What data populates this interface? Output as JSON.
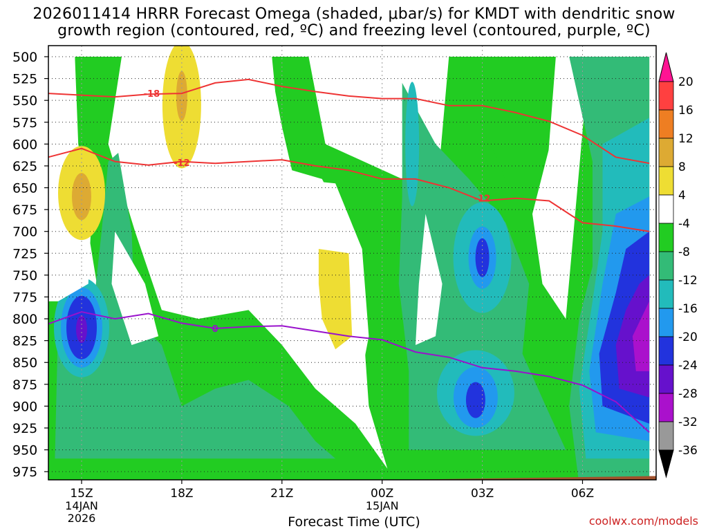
{
  "title_line1": "2026011414 HRRR Forecast Omega (shaded, μbar/s) for KMDT with dendritic snow",
  "title_line2": "growth region (contoured, red, ºC) and freezing level (contoured, purple, ºC)",
  "credit": "coolwx.com/models",
  "chart_data": {
    "type": "heatmap",
    "xlabel": "Forecast Time (UTC)",
    "ylabel": "",
    "x_ticks": [
      {
        "label": "15Z",
        "sub": [
          "14JAN",
          "2026"
        ],
        "hour": 15
      },
      {
        "label": "18Z",
        "sub": [],
        "hour": 18
      },
      {
        "label": "21Z",
        "sub": [],
        "hour": 21
      },
      {
        "label": "00Z",
        "sub": [
          "15JAN"
        ],
        "hour": 24
      },
      {
        "label": "03Z",
        "sub": [],
        "hour": 27
      },
      {
        "label": "06Z",
        "sub": [],
        "hour": 30
      }
    ],
    "x_range_hours": [
      14,
      32
    ],
    "y_ticks": [
      "500",
      "525",
      "550",
      "575",
      "600",
      "625",
      "650",
      "675",
      "700",
      "725",
      "750",
      "775",
      "800",
      "825",
      "850",
      "875",
      "900",
      "925",
      "950",
      "975"
    ],
    "y_range_mb": [
      500,
      990
    ],
    "grid": true,
    "colorbar": {
      "labels": [
        "20",
        "16",
        "12",
        "8",
        "4",
        "-4",
        "-8",
        "-12",
        "-16",
        "-20",
        "-24",
        "-28",
        "-32",
        "-36"
      ],
      "colors": [
        "#ff1493",
        "#ff4040",
        "#ee7e22",
        "#ddaa33",
        "#eedd33",
        "#ffffff",
        "#22cc22",
        "#33bb77",
        "#22bbbb",
        "#2299ee",
        "#2233dd",
        "#6611cc",
        "#aa11cc",
        "#999999",
        "#000000"
      ]
    },
    "red_isotherms": [
      {
        "label": "-18",
        "points": [
          [
            14,
            542
          ],
          [
            15,
            544
          ],
          [
            16,
            546
          ],
          [
            17,
            543
          ],
          [
            18,
            542
          ],
          [
            19,
            530
          ],
          [
            20,
            526
          ],
          [
            21,
            534
          ],
          [
            22,
            540
          ],
          [
            23,
            545
          ],
          [
            24,
            548
          ],
          [
            25,
            548
          ],
          [
            26,
            556
          ],
          [
            27,
            556
          ],
          [
            28,
            564
          ],
          [
            29,
            574
          ],
          [
            30,
            590
          ],
          [
            31,
            615
          ],
          [
            32,
            622
          ]
        ]
      },
      {
        "label": "-12",
        "points": [
          [
            14,
            615
          ],
          [
            15,
            605
          ],
          [
            16,
            620
          ],
          [
            17,
            624
          ],
          [
            18,
            620
          ],
          [
            19,
            622
          ],
          [
            20,
            620
          ],
          [
            21,
            618
          ],
          [
            22,
            625
          ],
          [
            23,
            630
          ],
          [
            24,
            640
          ],
          [
            25,
            640
          ],
          [
            26,
            650
          ],
          [
            27,
            665
          ],
          [
            28,
            662
          ],
          [
            29,
            665
          ],
          [
            30,
            690
          ],
          [
            31,
            694
          ],
          [
            32,
            700
          ]
        ]
      }
    ],
    "purple_isotherms": [
      {
        "label": "0",
        "points": [
          [
            14,
            806
          ],
          [
            15,
            792
          ],
          [
            16,
            800
          ],
          [
            17,
            794
          ],
          [
            18,
            805
          ],
          [
            19,
            811
          ],
          [
            20,
            809
          ],
          [
            21,
            808
          ],
          [
            22,
            814
          ],
          [
            23,
            820
          ],
          [
            24,
            824
          ],
          [
            25,
            838
          ],
          [
            26,
            844
          ],
          [
            27,
            856
          ],
          [
            28,
            860
          ],
          [
            29,
            866
          ],
          [
            30,
            876
          ],
          [
            31,
            895
          ],
          [
            32,
            930
          ]
        ]
      }
    ],
    "ground_mb_left": 990,
    "ground_mb_right": 980
  }
}
